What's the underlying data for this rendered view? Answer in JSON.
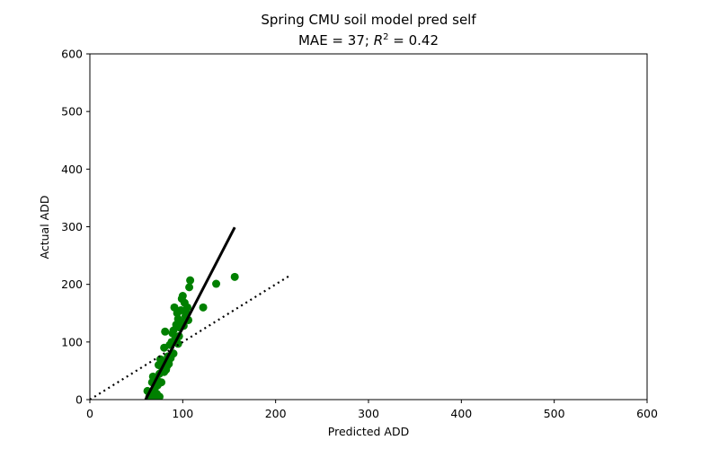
{
  "chart_data": {
    "type": "scatter",
    "title": "Spring CMU soil model pred self",
    "subtitle": {
      "prefix": "MAE = 37; ",
      "r_symbol": "R",
      "exponent": "2",
      "suffix": " = 0.42"
    },
    "xlabel": "Predicted ADD",
    "ylabel": "Actual ADD",
    "xlim": [
      0,
      600
    ],
    "ylim": [
      0,
      600
    ],
    "xticks": [
      0,
      100,
      200,
      300,
      400,
      500,
      600
    ],
    "yticks": [
      0,
      100,
      200,
      300,
      400,
      500,
      600
    ],
    "grid": false,
    "colors": {
      "points": "#008000",
      "fit_line": "#000000",
      "identity_line": "#000000"
    },
    "points": [
      [
        62,
        15
      ],
      [
        64,
        5
      ],
      [
        65,
        0
      ],
      [
        66,
        8
      ],
      [
        67,
        30
      ],
      [
        68,
        2
      ],
      [
        68,
        40
      ],
      [
        69,
        12
      ],
      [
        70,
        20
      ],
      [
        70,
        0
      ],
      [
        71,
        5
      ],
      [
        72,
        35
      ],
      [
        72,
        10
      ],
      [
        73,
        25
      ],
      [
        74,
        0
      ],
      [
        74,
        60
      ],
      [
        75,
        5
      ],
      [
        75,
        45
      ],
      [
        76,
        70
      ],
      [
        77,
        30
      ],
      [
        78,
        55
      ],
      [
        79,
        65
      ],
      [
        80,
        90
      ],
      [
        80,
        48
      ],
      [
        81,
        118
      ],
      [
        82,
        52
      ],
      [
        83,
        58
      ],
      [
        84,
        75
      ],
      [
        85,
        62
      ],
      [
        86,
        95
      ],
      [
        87,
        72
      ],
      [
        88,
        100
      ],
      [
        89,
        115
      ],
      [
        90,
        80
      ],
      [
        90,
        120
      ],
      [
        91,
        160
      ],
      [
        92,
        105
      ],
      [
        93,
        130
      ],
      [
        94,
        150
      ],
      [
        95,
        97
      ],
      [
        95,
        140
      ],
      [
        96,
        110
      ],
      [
        97,
        125
      ],
      [
        98,
        135
      ],
      [
        98,
        155
      ],
      [
        99,
        175
      ],
      [
        100,
        180
      ],
      [
        101,
        128
      ],
      [
        102,
        168
      ],
      [
        103,
        145
      ],
      [
        104,
        150
      ],
      [
        105,
        160
      ],
      [
        106,
        138
      ],
      [
        107,
        195
      ],
      [
        108,
        207
      ],
      [
        122,
        160
      ],
      [
        136,
        201
      ],
      [
        156,
        213
      ]
    ],
    "fit_line": {
      "x": [
        60,
        156
      ],
      "y": [
        0,
        299
      ]
    },
    "identity_line": {
      "x": [
        0,
        215
      ],
      "y": [
        0,
        215
      ]
    }
  }
}
